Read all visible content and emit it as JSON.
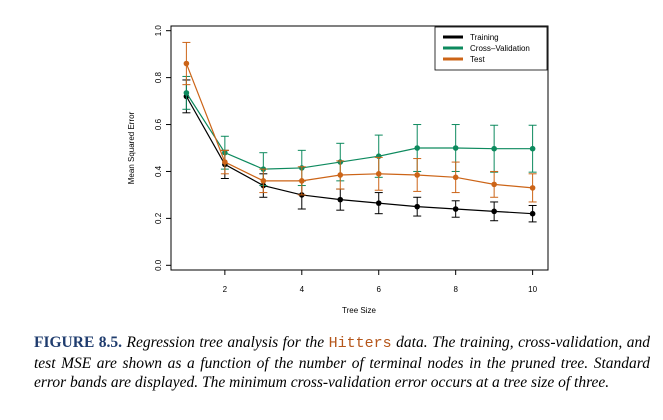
{
  "chart_data": {
    "type": "line",
    "title": "",
    "xlabel": "Tree Size",
    "ylabel": "Mean Squared Error",
    "xlim": [
      0.6,
      10.4
    ],
    "ylim": [
      -0.02,
      1.02
    ],
    "xticks": [
      2,
      4,
      6,
      8,
      10
    ],
    "yticks": [
      0.0,
      0.2,
      0.4,
      0.6,
      0.8,
      1.0
    ],
    "xtick_labels": [
      "2",
      "4",
      "6",
      "8",
      "10"
    ],
    "ytick_labels": [
      "0.0",
      "0.2",
      "0.4",
      "0.6",
      "0.8",
      "1.0"
    ],
    "legend_position": "top-right",
    "x": [
      1,
      2,
      3,
      4,
      5,
      6,
      7,
      8,
      9,
      10
    ],
    "series": [
      {
        "name": "Training",
        "color": "#000000",
        "values": [
          0.72,
          0.43,
          0.34,
          0.3,
          0.28,
          0.265,
          0.25,
          0.24,
          0.23,
          0.22
        ],
        "se": [
          0.07,
          0.06,
          0.05,
          0.06,
          0.045,
          0.045,
          0.04,
          0.035,
          0.04,
          0.035
        ]
      },
      {
        "name": "Cross–Validation",
        "color": "#0d8a5e",
        "values": [
          0.735,
          0.48,
          0.41,
          0.415,
          0.44,
          0.465,
          0.5,
          0.5,
          0.497,
          0.497
        ],
        "se": [
          0.07,
          0.07,
          0.07,
          0.075,
          0.08,
          0.09,
          0.1,
          0.1,
          0.1,
          0.1
        ]
      },
      {
        "name": "Test",
        "color": "#cc6417",
        "values": [
          0.86,
          0.44,
          0.36,
          0.36,
          0.385,
          0.39,
          0.385,
          0.375,
          0.345,
          0.33
        ],
        "se": [
          0.09,
          0.05,
          0.05,
          0.06,
          0.06,
          0.07,
          0.07,
          0.065,
          0.055,
          0.06
        ]
      }
    ]
  },
  "caption": {
    "label": "FIGURE 8.5.",
    "text_before": " Regression tree analysis for the ",
    "code": "Hitters",
    "text_after": " data. The training, cross-validation, and test MSE are shown as a function of the number of terminal nodes in the pruned tree. Standard error bands are displayed. The minimum cross-validation error occurs at a tree size of three."
  }
}
